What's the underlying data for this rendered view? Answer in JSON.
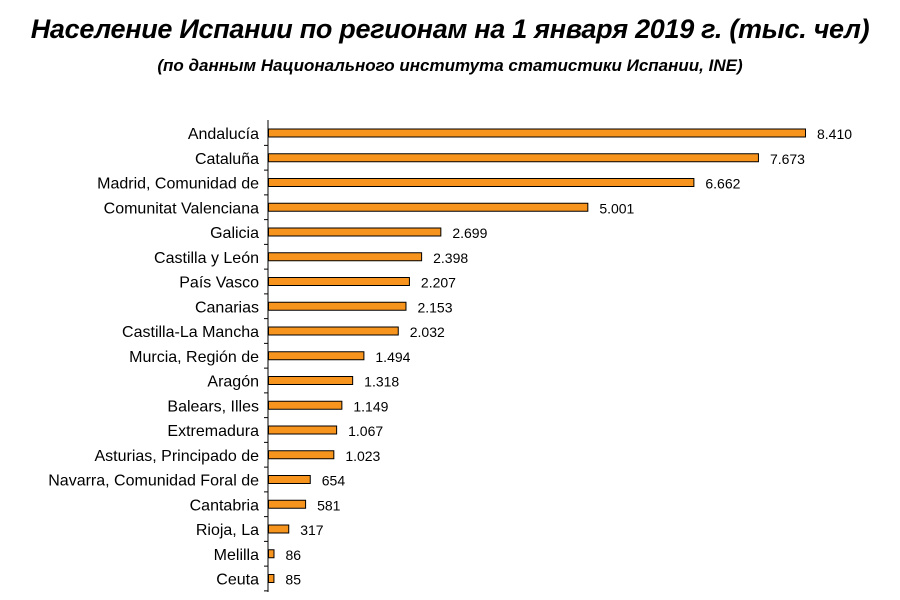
{
  "title": "Население Испании по регионам  на 1 января 2019 г. (тыс. чел)",
  "subtitle": "(по данным Национального института статистики Испании, INE)",
  "colors": {
    "bar_fill": "#F7941D",
    "bar_stroke": "#000000",
    "axis": "#000000"
  },
  "chart_data": {
    "type": "bar",
    "orientation": "horizontal",
    "title": "Население Испании по регионам  на 1 января 2019 г. (тыс. чел)",
    "subtitle": "(по данным Национального института статистики Испании, INE)",
    "categories": [
      "Andalucía",
      "Cataluña",
      "Madrid, Comunidad de",
      "Comunitat Valenciana",
      "Galicia",
      "Castilla y León",
      "País Vasco",
      "Canarias",
      "Castilla-La Mancha",
      "Murcia, Región de",
      "Aragón",
      "Balears, Illes",
      "Extremadura",
      "Asturias, Principado de",
      "Navarra, Comunidad Foral de",
      "Cantabria",
      "Rioja, La",
      "Melilla",
      "Ceuta"
    ],
    "values": [
      8410,
      7673,
      6662,
      5001,
      2699,
      2398,
      2207,
      2153,
      2032,
      1494,
      1318,
      1149,
      1067,
      1023,
      654,
      581,
      317,
      86,
      85
    ],
    "value_labels": [
      "8.410",
      "7.673",
      "6.662",
      "5.001",
      "2.699",
      "2.398",
      "2.207",
      "2.153",
      "2.032",
      "1.494",
      "1.318",
      "1.149",
      "1.067",
      "1.023",
      "654",
      "581",
      "317",
      "86",
      "85"
    ],
    "xlabel": "",
    "ylabel": "",
    "xlim": [
      0,
      8410
    ],
    "grid": false,
    "legend": "none"
  }
}
